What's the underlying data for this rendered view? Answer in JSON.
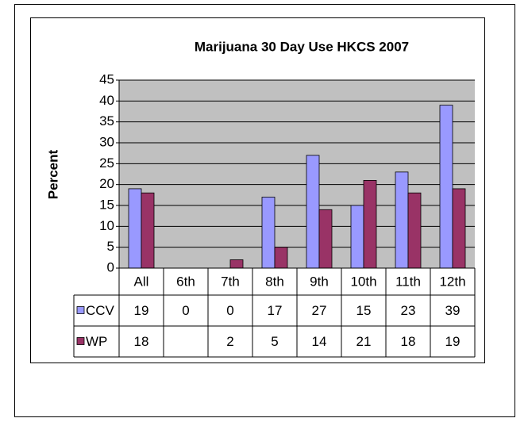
{
  "chart_data": {
    "type": "bar",
    "title": "Marijuana 30 Day Use HKCS 2007",
    "y_label": "Percent",
    "categories": [
      "All",
      "6th",
      "7th",
      "8th",
      "9th",
      "10th",
      "11th",
      "12th"
    ],
    "series": [
      {
        "name": "CCV",
        "color": "#9999ff",
        "values": [
          19,
          0,
          0,
          17,
          27,
          15,
          23,
          39
        ]
      },
      {
        "name": "WP",
        "color": "#993366",
        "values": [
          18,
          null,
          2,
          5,
          14,
          21,
          18,
          19
        ]
      }
    ],
    "ylim": [
      0,
      45
    ],
    "yticks": [
      0,
      5,
      10,
      15,
      20,
      25,
      30,
      35,
      40,
      45
    ],
    "grid": true,
    "plot_background": "#c0c0c0"
  }
}
